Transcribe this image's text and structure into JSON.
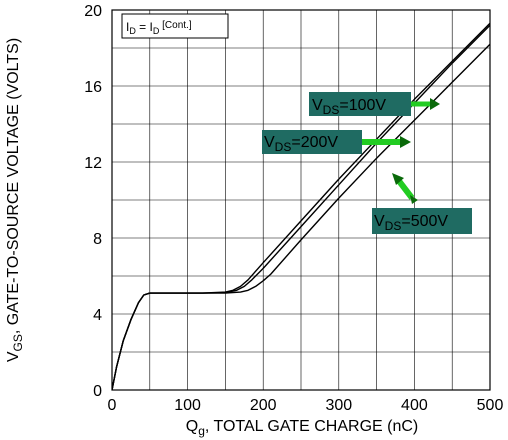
{
  "chart_data": {
    "type": "line",
    "xlabel": {
      "main": "Q",
      "sub": "g",
      "rest": ", TOTAL GATE CHARGE (nC)"
    },
    "ylabel": {
      "main": "V",
      "sub": "GS",
      "rest": ", GATE-TO-SOURCE VOLTAGE (VOLTS)"
    },
    "xlim": [
      0,
      500
    ],
    "ylim": [
      0,
      20
    ],
    "x_ticks": [
      0,
      100,
      200,
      300,
      400,
      500
    ],
    "x_tick_labels": [
      "0",
      "100",
      "200",
      "300",
      "400",
      "500"
    ],
    "y_ticks": [
      0,
      4,
      8,
      12,
      16,
      20
    ],
    "y_tick_labels": [
      "0",
      "4",
      "8",
      "12",
      "16",
      "20"
    ],
    "grid": true,
    "legend_box": {
      "main": "I",
      "sub": "D",
      "eq": " = I",
      "sub2": "D",
      "note": " [Cont.]"
    },
    "series": [
      {
        "name": "VDS=100V",
        "x": [
          0,
          6,
          15,
          25,
          35,
          42,
          50,
          80,
          120,
          150,
          160,
          170,
          180,
          200,
          250,
          300,
          350,
          400,
          450,
          500
        ],
        "y": [
          0,
          1.2,
          2.6,
          3.7,
          4.6,
          5.0,
          5.1,
          5.1,
          5.1,
          5.15,
          5.25,
          5.45,
          5.8,
          6.7,
          8.9,
          11.1,
          13.2,
          15.3,
          17.3,
          19.3
        ]
      },
      {
        "name": "VDS=200V",
        "x": [
          0,
          6,
          15,
          25,
          35,
          42,
          50,
          80,
          120,
          150,
          165,
          175,
          185,
          200,
          250,
          300,
          350,
          400,
          450,
          500
        ],
        "y": [
          0,
          1.2,
          2.6,
          3.7,
          4.6,
          5.0,
          5.1,
          5.1,
          5.1,
          5.12,
          5.25,
          5.45,
          5.8,
          6.4,
          8.6,
          10.8,
          13.0,
          15.1,
          17.2,
          19.2
        ]
      },
      {
        "name": "VDS=500V",
        "x": [
          0,
          6,
          15,
          25,
          35,
          42,
          50,
          80,
          120,
          150,
          170,
          180,
          190,
          200,
          210,
          250,
          300,
          350,
          400,
          450,
          500
        ],
        "y": [
          0,
          1.2,
          2.6,
          3.7,
          4.6,
          5.0,
          5.1,
          5.1,
          5.1,
          5.1,
          5.15,
          5.25,
          5.45,
          5.75,
          6.1,
          7.9,
          10.1,
          12.2,
          14.2,
          16.2,
          18.2
        ]
      }
    ],
    "annotations": [
      {
        "main": "V",
        "sub": "DS",
        "rest": "=100V"
      },
      {
        "main": "V",
        "sub": "DS",
        "rest": "=200V"
      },
      {
        "main": "V",
        "sub": "DS",
        "rest": "=500V"
      }
    ]
  },
  "colors": {
    "callout_bg": "#1f6b62",
    "arrow": "#22cc22",
    "arrow_dark": "#0a6a0a",
    "line": "#000000",
    "grid": "#000000"
  }
}
